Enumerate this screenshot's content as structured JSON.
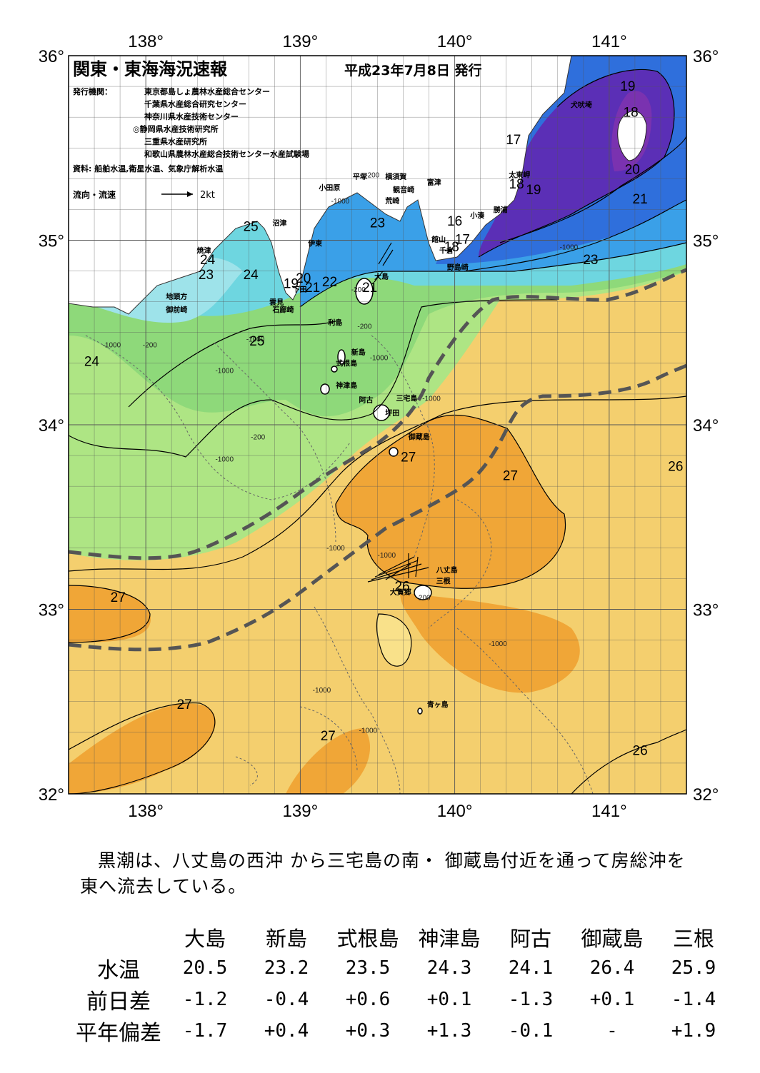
{
  "header": {
    "title": "関東・東海海況速報",
    "issue_date": "平成23年7月8日 発行",
    "publisher_label": "発行機関：",
    "publishers": [
      "東京都島しょ農林水産総合センター",
      "千葉県水産総合研究センター",
      "神奈川県水産技術センター",
      "◎静岡県水産技術研究所",
      "三重県水産研究所",
      "和歌山県農林水産総合技術センター水産試験場"
    ],
    "source": "資料: 船舶水温,衛星水温、気象庁解析水温",
    "current_legend": "流向・流速",
    "current_scale": "2kt"
  },
  "map": {
    "lon_ticks": [
      "138°",
      "139°",
      "140°",
      "141°"
    ],
    "lat_ticks": [
      "36°",
      "35°",
      "34°",
      "33°",
      "32°"
    ],
    "place_labels": [
      {
        "name": "犬吠埼",
        "lon": 140.75,
        "lat": 35.72
      },
      {
        "name": "太東岬",
        "lon": 140.35,
        "lat": 35.34
      },
      {
        "name": "勝浦",
        "lon": 140.25,
        "lat": 35.15
      },
      {
        "name": "小湊",
        "lon": 140.1,
        "lat": 35.12
      },
      {
        "name": "館山",
        "lon": 139.85,
        "lat": 34.99
      },
      {
        "name": "千倉",
        "lon": 139.9,
        "lat": 34.93
      },
      {
        "name": "野島崎",
        "lon": 139.95,
        "lat": 34.84
      },
      {
        "name": "富津",
        "lon": 139.82,
        "lat": 35.3
      },
      {
        "name": "横須賀",
        "lon": 139.55,
        "lat": 35.33
      },
      {
        "name": "観音崎",
        "lon": 139.6,
        "lat": 35.26
      },
      {
        "name": "荒崎",
        "lon": 139.55,
        "lat": 35.2
      },
      {
        "name": "平塚",
        "lon": 139.34,
        "lat": 35.33
      },
      {
        "name": "小田原",
        "lon": 139.12,
        "lat": 35.27
      },
      {
        "name": "沼津",
        "lon": 138.82,
        "lat": 35.08
      },
      {
        "name": "伊東",
        "lon": 139.05,
        "lat": 34.97
      },
      {
        "name": "焼津",
        "lon": 138.33,
        "lat": 34.93
      },
      {
        "name": "下田",
        "lon": 138.95,
        "lat": 34.72
      },
      {
        "name": "雲見",
        "lon": 138.8,
        "lat": 34.65
      },
      {
        "name": "石廊崎",
        "lon": 138.82,
        "lat": 34.61
      },
      {
        "name": "地頭方",
        "lon": 138.13,
        "lat": 34.68
      },
      {
        "name": "御前崎",
        "lon": 138.13,
        "lat": 34.61
      },
      {
        "name": "大島",
        "lon": 139.48,
        "lat": 34.79
      },
      {
        "name": "利島",
        "lon": 139.18,
        "lat": 34.54
      },
      {
        "name": "新島",
        "lon": 139.33,
        "lat": 34.38
      },
      {
        "name": "式根島",
        "lon": 139.23,
        "lat": 34.32
      },
      {
        "name": "神津島",
        "lon": 139.23,
        "lat": 34.2
      },
      {
        "name": "阿古",
        "lon": 139.38,
        "lat": 34.12
      },
      {
        "name": "三宅島",
        "lon": 139.62,
        "lat": 34.13
      },
      {
        "name": "坪田",
        "lon": 139.55,
        "lat": 34.05
      },
      {
        "name": "御蔵島",
        "lon": 139.7,
        "lat": 33.92
      },
      {
        "name": "八丈島",
        "lon": 139.88,
        "lat": 33.2
      },
      {
        "name": "三根",
        "lon": 139.88,
        "lat": 33.14
      },
      {
        "name": "大賀郷",
        "lon": 139.58,
        "lat": 33.08
      },
      {
        "name": "青ヶ島",
        "lon": 139.82,
        "lat": 32.47
      }
    ],
    "temperature_labels": [
      {
        "t": "19",
        "lon": 141.12,
        "lat": 35.81
      },
      {
        "t": "18",
        "lon": 141.14,
        "lat": 35.67
      },
      {
        "t": "17",
        "lon": 140.38,
        "lat": 35.52
      },
      {
        "t": "20",
        "lon": 141.15,
        "lat": 35.36
      },
      {
        "t": "18",
        "lon": 140.4,
        "lat": 35.28
      },
      {
        "t": "19",
        "lon": 140.51,
        "lat": 35.25
      },
      {
        "t": "21",
        "lon": 141.2,
        "lat": 35.2
      },
      {
        "t": "16",
        "lon": 140.0,
        "lat": 35.08
      },
      {
        "t": "17",
        "lon": 140.05,
        "lat": 34.98
      },
      {
        "t": "18",
        "lon": 139.98,
        "lat": 34.94
      },
      {
        "t": "23",
        "lon": 140.88,
        "lat": 34.87
      },
      {
        "t": "23",
        "lon": 139.5,
        "lat": 35.07
      },
      {
        "t": "25",
        "lon": 138.68,
        "lat": 35.05
      },
      {
        "t": "24",
        "lon": 138.4,
        "lat": 34.87
      },
      {
        "t": "23",
        "lon": 138.39,
        "lat": 34.79
      },
      {
        "t": "24",
        "lon": 138.68,
        "lat": 34.79
      },
      {
        "t": "20",
        "lon": 139.02,
        "lat": 34.77
      },
      {
        "t": "19",
        "lon": 138.94,
        "lat": 34.74
      },
      {
        "t": "21",
        "lon": 139.08,
        "lat": 34.72
      },
      {
        "t": "22",
        "lon": 139.19,
        "lat": 34.75
      },
      {
        "t": "21",
        "lon": 139.45,
        "lat": 34.72
      },
      {
        "t": "25",
        "lon": 138.72,
        "lat": 34.43
      },
      {
        "t": "24",
        "lon": 137.65,
        "lat": 34.32
      },
      {
        "t": "27",
        "lon": 139.7,
        "lat": 33.8
      },
      {
        "t": "27",
        "lon": 140.36,
        "lat": 33.7
      },
      {
        "t": "26",
        "lon": 141.43,
        "lat": 33.75
      },
      {
        "t": "26",
        "lon": 139.66,
        "lat": 33.1
      },
      {
        "t": "27",
        "lon": 137.82,
        "lat": 33.04
      },
      {
        "t": "27",
        "lon": 138.25,
        "lat": 32.46
      },
      {
        "t": "27",
        "lon": 139.18,
        "lat": 32.29
      },
      {
        "t": "26",
        "lon": 141.2,
        "lat": 32.21
      }
    ],
    "depth_labels": [
      {
        "t": "-200",
        "lon": 139.42,
        "lat": 35.34
      },
      {
        "t": "-1000",
        "lon": 139.2,
        "lat": 35.2
      },
      {
        "t": "-200",
        "lon": 139.33,
        "lat": 34.72
      },
      {
        "t": "-200",
        "lon": 139.37,
        "lat": 34.52
      },
      {
        "t": "-1000",
        "lon": 138.65,
        "lat": 34.45
      },
      {
        "t": "-1000",
        "lon": 137.72,
        "lat": 34.42
      },
      {
        "t": "-200",
        "lon": 137.98,
        "lat": 34.42
      },
      {
        "t": "-1000",
        "lon": 138.45,
        "lat": 34.28
      },
      {
        "t": "-200",
        "lon": 138.68,
        "lat": 33.92
      },
      {
        "t": "-1000",
        "lon": 138.45,
        "lat": 33.8
      },
      {
        "t": "-1000",
        "lon": 140.68,
        "lat": 34.95
      },
      {
        "t": "-1000",
        "lon": 139.45,
        "lat": 34.35
      },
      {
        "t": "-1000",
        "lon": 139.79,
        "lat": 34.13
      },
      {
        "t": "-1000",
        "lon": 139.17,
        "lat": 33.32
      },
      {
        "t": "-1000",
        "lon": 139.5,
        "lat": 33.28
      },
      {
        "t": "-200",
        "lon": 139.75,
        "lat": 33.05
      },
      {
        "t": "-1000",
        "lon": 140.22,
        "lat": 32.8
      },
      {
        "t": "-1000",
        "lon": 139.08,
        "lat": 32.55
      },
      {
        "t": "-1000",
        "lon": 139.38,
        "lat": 32.33
      }
    ]
  },
  "bulletin": {
    "line1": "黒潮は、八丈島の西沖 から三宅島の南・ 御蔵島付近を通って房総沖を",
    "line2": "東へ流去している。"
  },
  "stations": {
    "columns": [
      "大島",
      "新島",
      "式根島",
      "神津島",
      "阿古",
      "御蔵島",
      "三根"
    ],
    "rows": [
      {
        "label": "水温",
        "values": [
          "20.5",
          "23.2",
          "23.5",
          "24.3",
          "24.1",
          "26.4",
          "25.9"
        ]
      },
      {
        "label": "前日差",
        "values": [
          "-1.2",
          "-0.4",
          "+0.6",
          "+0.1",
          "-1.3",
          "+0.1",
          "-1.4"
        ]
      },
      {
        "label": "平年偏差",
        "values": [
          "-1.7",
          "+0.4",
          "+0.3",
          "+1.3",
          "-0.1",
          "-",
          "+1.9"
        ]
      }
    ]
  }
}
